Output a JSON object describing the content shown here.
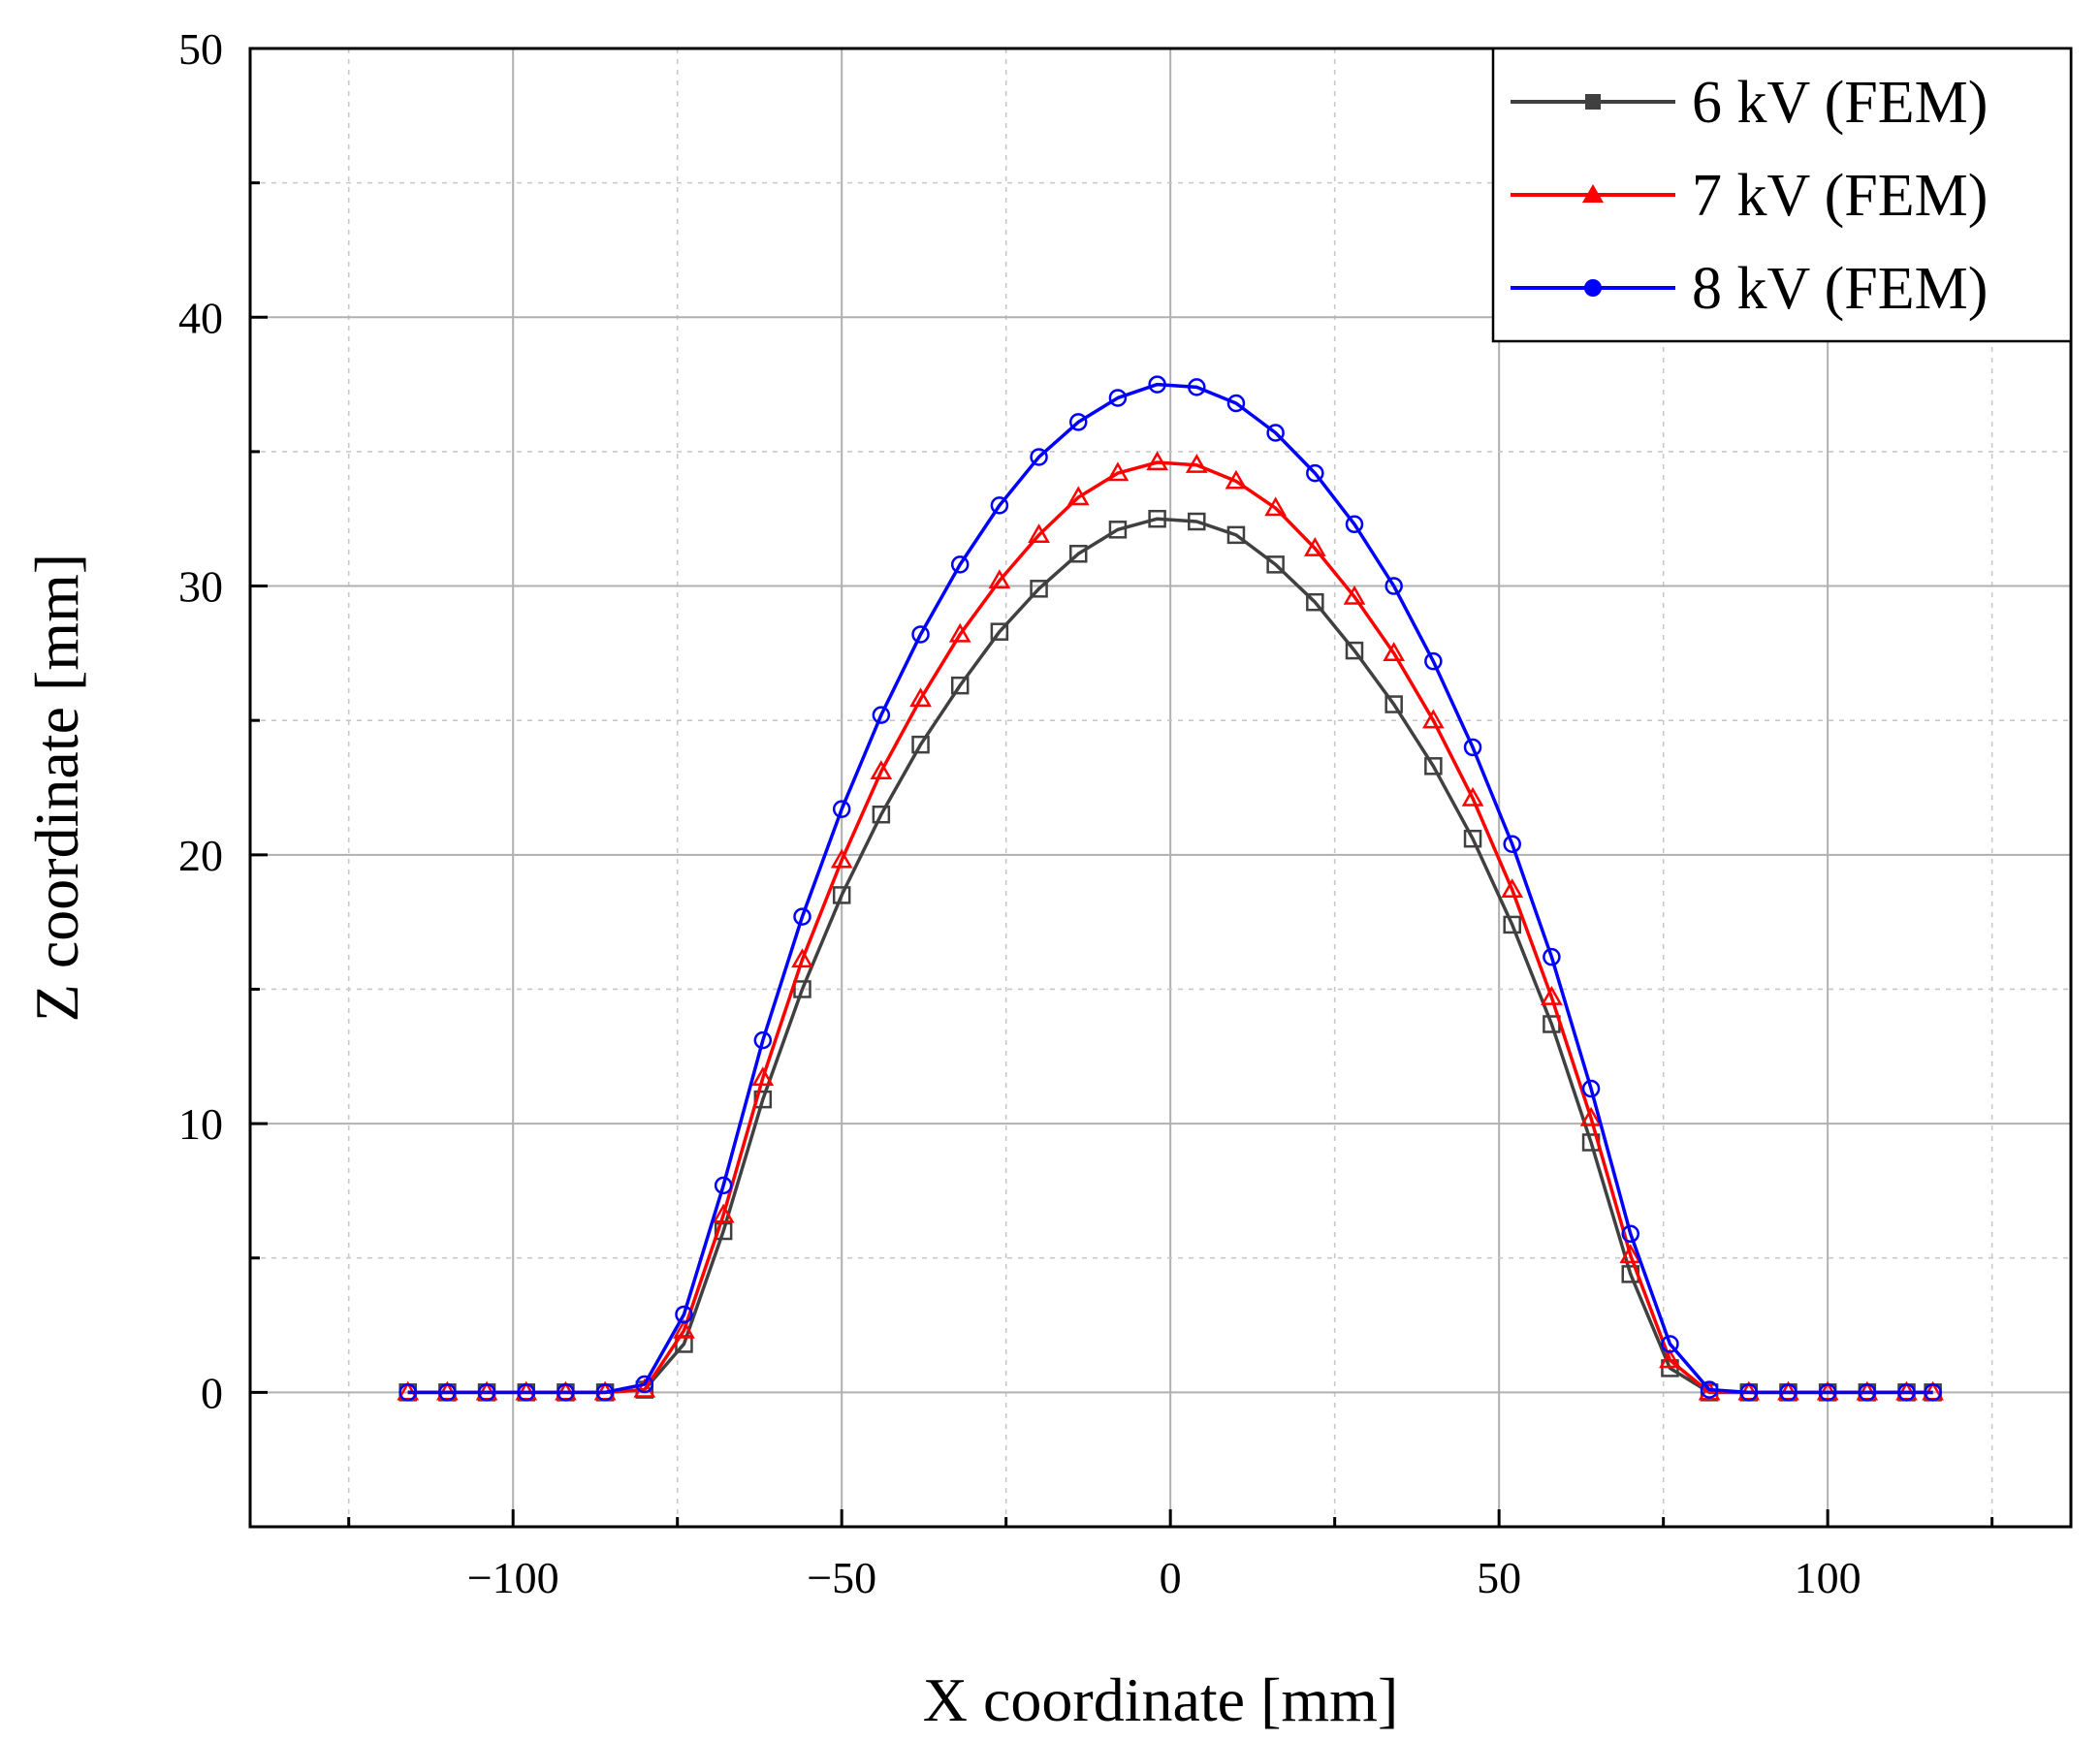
{
  "chart_data": {
    "type": "line",
    "title": "",
    "xlabel": "X coordinate [mm]",
    "ylabel": "Z coordinate [mm]",
    "xlim": [
      -140,
      137
    ],
    "ylim": [
      -5,
      50
    ],
    "xticks": [
      -100,
      -50,
      0,
      50,
      100
    ],
    "yticks": [
      0,
      10,
      20,
      30,
      40,
      50
    ],
    "xtick_labels": [
      "−100",
      "−50",
      "0",
      "50",
      "100"
    ],
    "ytick_labels": [
      "0",
      "10",
      "20",
      "30",
      "40",
      "50"
    ],
    "grid": true,
    "legend_position": "top-right",
    "x": [
      -116,
      -110,
      -104,
      -98,
      -92,
      -86,
      -80,
      -74,
      -68,
      -62,
      -56,
      -50,
      -44,
      -38,
      -32,
      -26,
      -20,
      -14,
      -8,
      -2,
      4,
      10,
      16,
      22,
      28,
      34,
      40,
      46,
      52,
      58,
      64,
      70,
      76,
      82,
      88,
      94,
      100,
      106,
      112,
      116
    ],
    "series": [
      {
        "name": "6 kV (FEM)",
        "color": "#404040",
        "marker": "square",
        "values": [
          0,
          0,
          0,
          0,
          0,
          0,
          0.1,
          1.8,
          6.0,
          10.9,
          15.0,
          18.5,
          21.5,
          24.1,
          26.3,
          28.3,
          29.9,
          31.2,
          32.1,
          32.5,
          32.4,
          31.9,
          30.8,
          29.4,
          27.6,
          25.6,
          23.3,
          20.6,
          17.4,
          13.7,
          9.3,
          4.4,
          0.9,
          0,
          0,
          0,
          0,
          0,
          0,
          0
        ]
      },
      {
        "name": "7 kV (FEM)",
        "color": "#ff0000",
        "marker": "triangle",
        "values": [
          0,
          0,
          0,
          0,
          0,
          0,
          0.1,
          2.3,
          6.6,
          11.7,
          16.1,
          19.8,
          23.1,
          25.8,
          28.2,
          30.2,
          31.9,
          33.3,
          34.2,
          34.6,
          34.5,
          33.9,
          32.9,
          31.4,
          29.6,
          27.5,
          25.0,
          22.1,
          18.7,
          14.7,
          10.2,
          5.1,
          1.2,
          0,
          0,
          0,
          0,
          0,
          0,
          0
        ]
      },
      {
        "name": "8 kV (FEM)",
        "color": "#0000ff",
        "marker": "circle",
        "values": [
          0,
          0,
          0,
          0,
          0,
          0,
          0.3,
          2.9,
          7.7,
          13.1,
          17.7,
          21.7,
          25.2,
          28.2,
          30.8,
          33.0,
          34.8,
          36.1,
          37.0,
          37.5,
          37.4,
          36.8,
          35.7,
          34.2,
          32.3,
          30.0,
          27.2,
          24.0,
          20.4,
          16.2,
          11.3,
          5.9,
          1.8,
          0.1,
          0,
          0,
          0,
          0,
          0,
          0
        ]
      }
    ]
  }
}
